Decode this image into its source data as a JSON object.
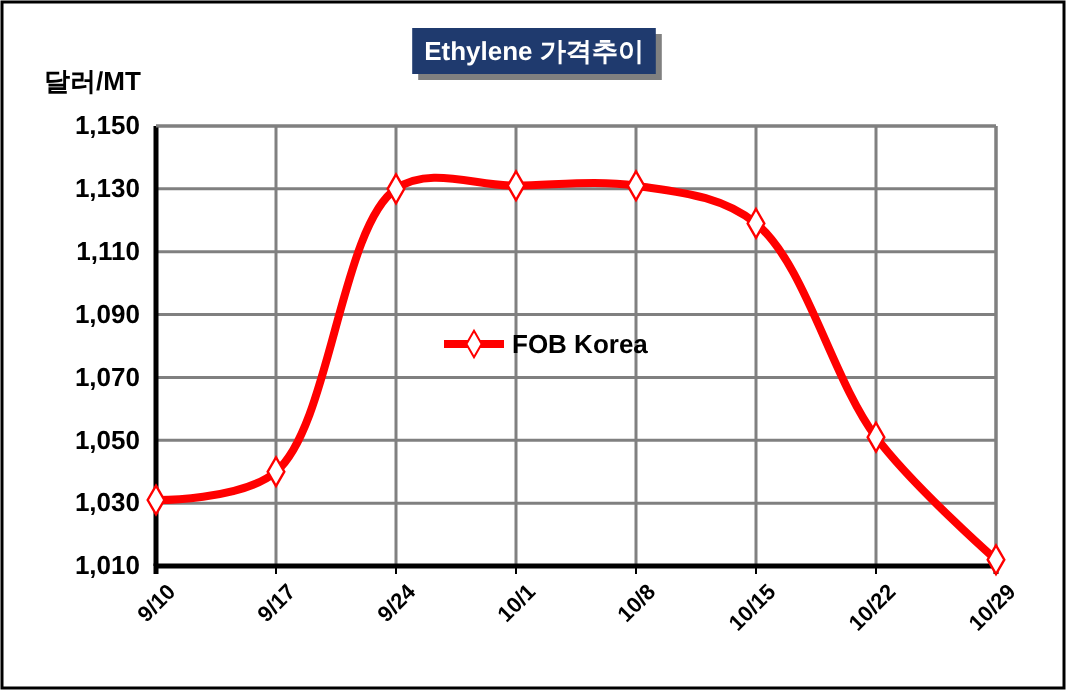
{
  "chart_data": {
    "type": "line",
    "title": "Ethylene 가격추이",
    "ylabel": "달러/MT",
    "categories": [
      "9/10",
      "9/17",
      "9/24",
      "10/1",
      "10/8",
      "10/15",
      "10/22",
      "10/29"
    ],
    "series": [
      {
        "name": "FOB Korea",
        "color": "#ff0000",
        "values": [
          1031,
          1040,
          1130,
          1131,
          1131,
          1119,
          1051,
          1012
        ]
      }
    ],
    "ylim": [
      1010,
      1150
    ],
    "yticks": [
      {
        "value": 1010,
        "label": "1,010"
      },
      {
        "value": 1030,
        "label": "1,030"
      },
      {
        "value": 1050,
        "label": "1,050"
      },
      {
        "value": 1070,
        "label": "1,070"
      },
      {
        "value": 1090,
        "label": "1,090"
      },
      {
        "value": 1110,
        "label": "1,110"
      },
      {
        "value": 1130,
        "label": "1,130"
      },
      {
        "value": 1150,
        "label": "1,150"
      }
    ],
    "grid": true,
    "legend": "center",
    "marker": "diamond",
    "line_style": "solid"
  }
}
